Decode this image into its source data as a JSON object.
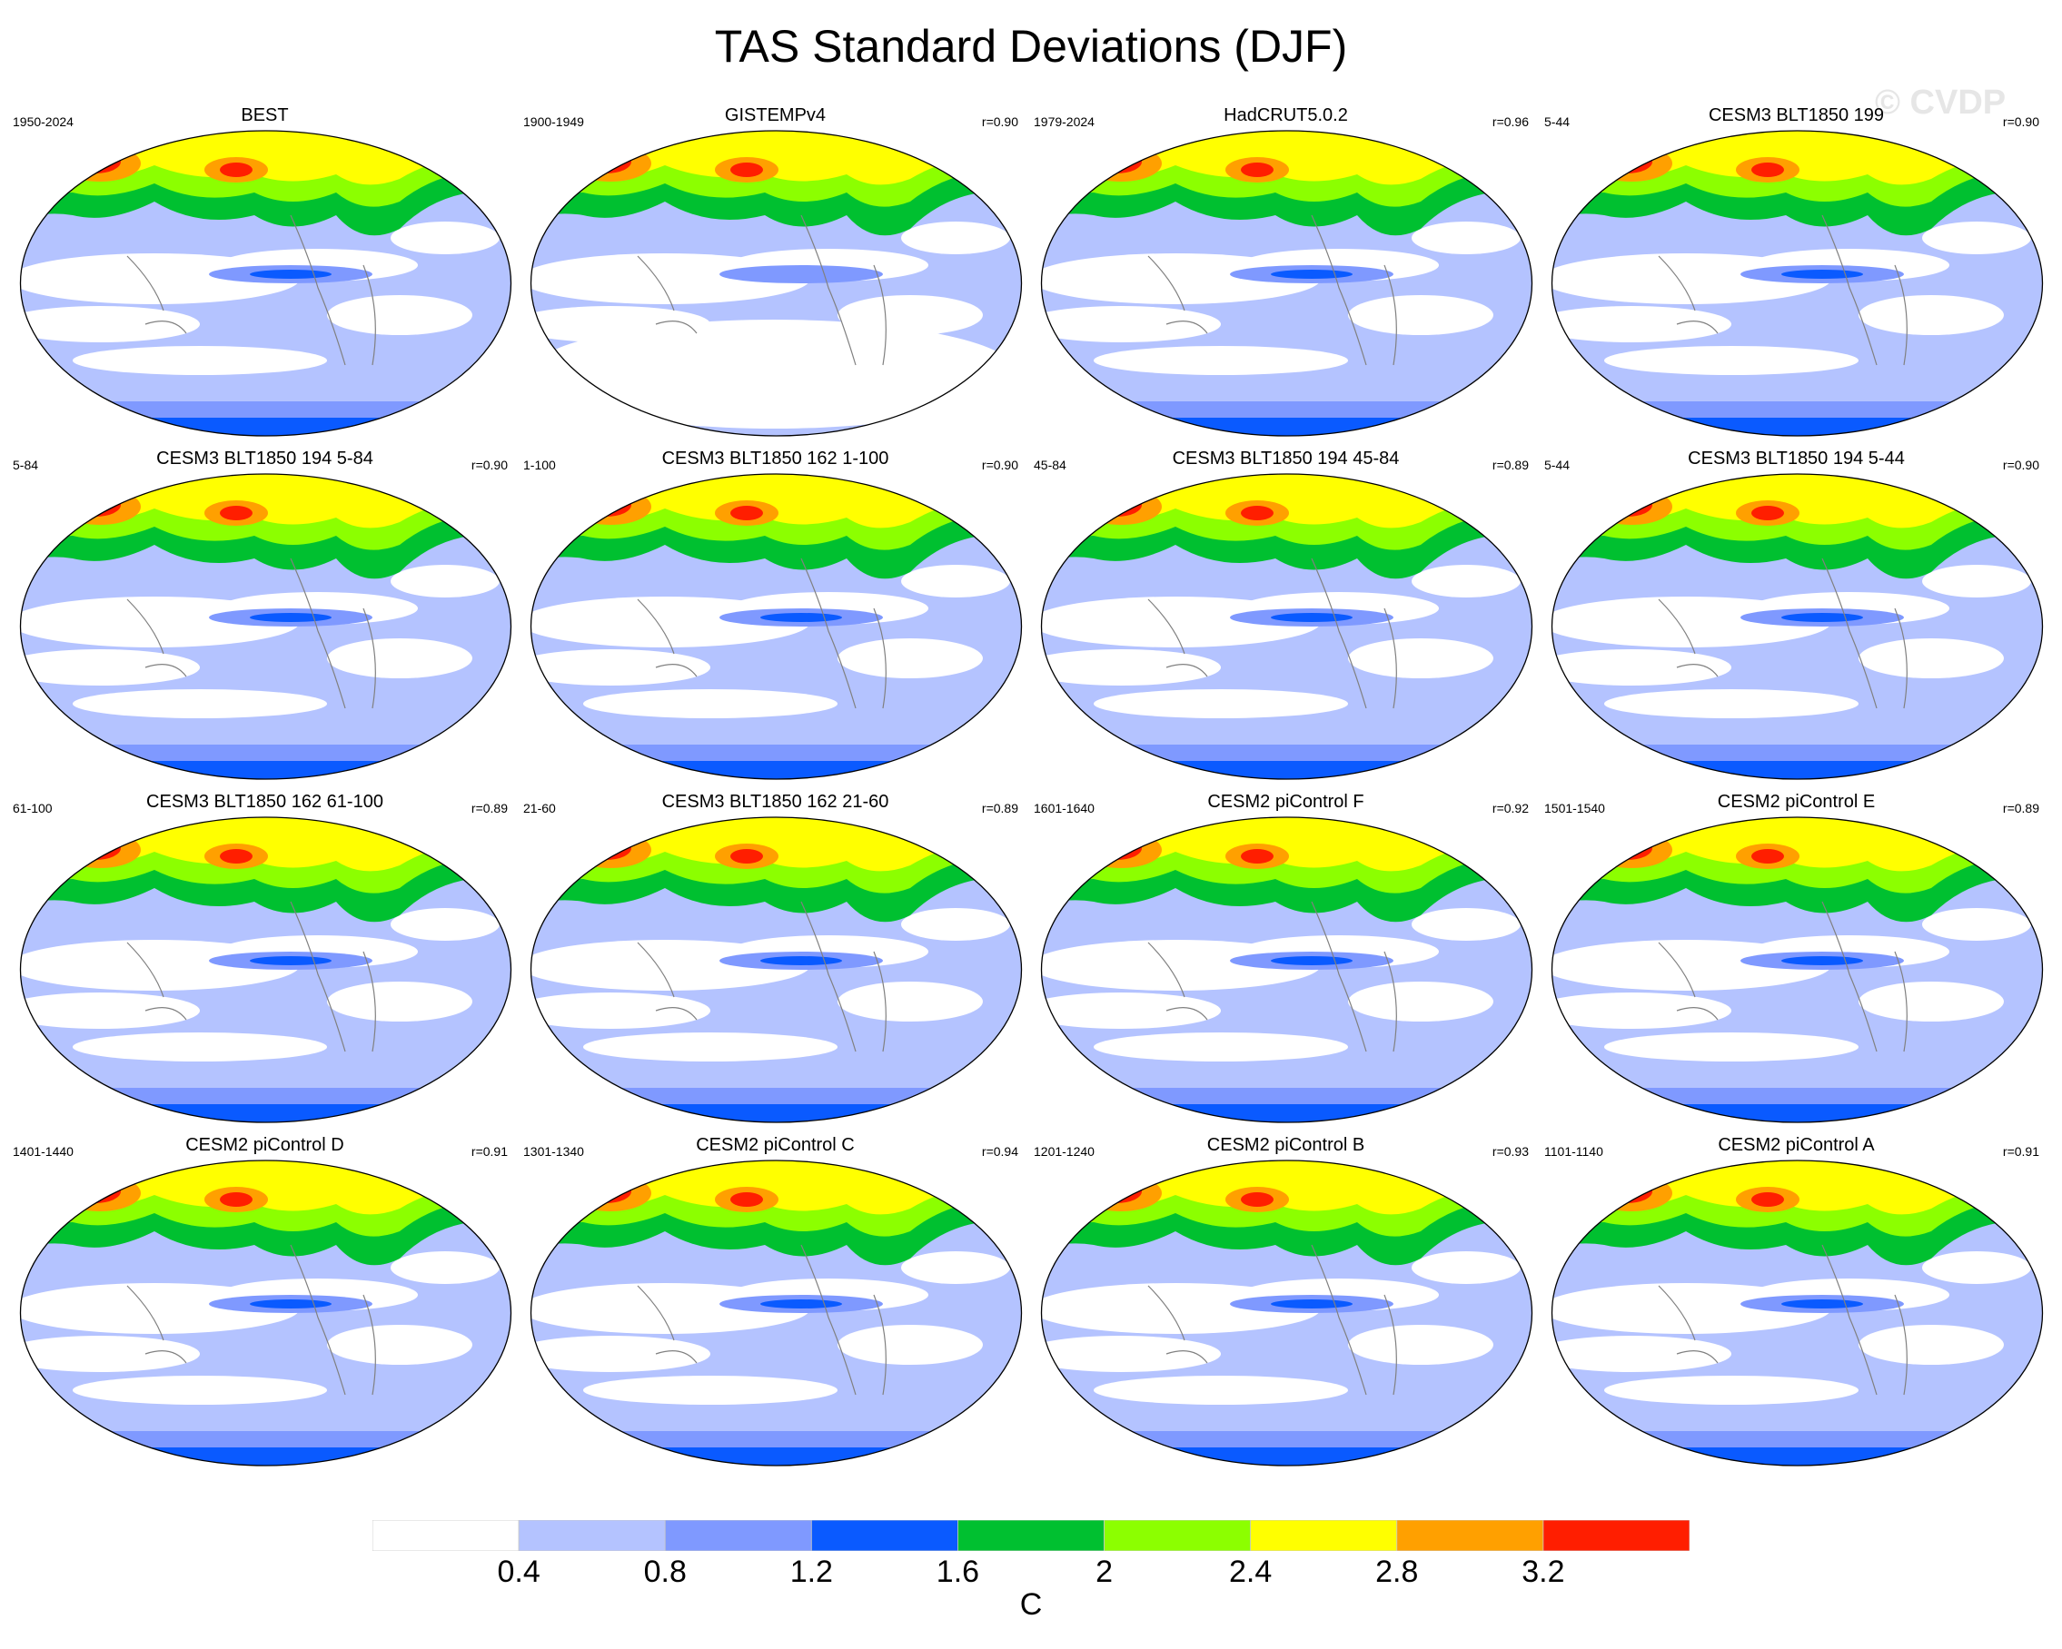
{
  "figure": {
    "title": "TAS Standard Deviations (DJF)",
    "watermark": "© CVDP"
  },
  "palette": {
    "ocean_low": "#ffffff",
    "level_1": "#b4c3ff",
    "level_2": "#7f99ff",
    "level_3": "#0a5aff",
    "level_4": "#00c030",
    "level_5": "#8cff00",
    "level_6": "#ffff00",
    "level_7": "#ffa000",
    "level_8": "#ff1e00",
    "coast": "#808080"
  },
  "panels": [
    {
      "title": "BEST",
      "period": "1950-2024",
      "r": ""
    },
    {
      "title": "GISTEMPv4",
      "period": "1900-1949",
      "r": "r=0.90"
    },
    {
      "title": "HadCRUT5.0.2",
      "period": "1979-2024",
      "r": "r=0.96"
    },
    {
      "title": "CESM3 BLT1850 199",
      "period": "5-44",
      "r": "r=0.90"
    },
    {
      "title": "CESM3 BLT1850 194 5-84",
      "period": "5-84",
      "r": "r=0.90"
    },
    {
      "title": "CESM3 BLT1850 162 1-100",
      "period": "1-100",
      "r": "r=0.90"
    },
    {
      "title": "CESM3 BLT1850 194 45-84",
      "period": "45-84",
      "r": "r=0.89"
    },
    {
      "title": "CESM3 BLT1850 194 5-44",
      "period": "5-44",
      "r": "r=0.90"
    },
    {
      "title": "CESM3 BLT1850 162 61-100",
      "period": "61-100",
      "r": "r=0.89"
    },
    {
      "title": "CESM3 BLT1850 162 21-60",
      "period": "21-60",
      "r": "r=0.89"
    },
    {
      "title": "CESM2 piControl F",
      "period": "1601-1640",
      "r": "r=0.92"
    },
    {
      "title": "CESM2 piControl E",
      "period": "1501-1540",
      "r": "r=0.89"
    },
    {
      "title": "CESM2 piControl D",
      "period": "1401-1440",
      "r": "r=0.91"
    },
    {
      "title": "CESM2 piControl C",
      "period": "1301-1340",
      "r": "r=0.94"
    },
    {
      "title": "CESM2 piControl B",
      "period": "1201-1240",
      "r": "r=0.93"
    },
    {
      "title": "CESM2 piControl A",
      "period": "1101-1140",
      "r": "r=0.91"
    }
  ],
  "colorbar": {
    "labels": [
      "0.4",
      "0.8",
      "1.2",
      "1.6",
      "2",
      "2.4",
      "2.8",
      "3.2"
    ],
    "units": "C",
    "colors": [
      "#ffffff",
      "#b4c3ff",
      "#7f99ff",
      "#0a5aff",
      "#00c030",
      "#8cff00",
      "#ffff00",
      "#ffa000",
      "#ff1e00"
    ]
  }
}
